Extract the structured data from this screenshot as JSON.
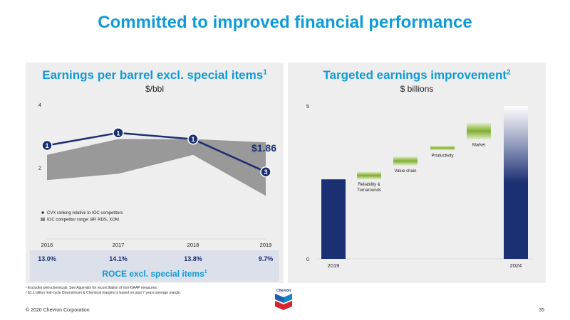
{
  "title": "Committed to improved financial performance",
  "left": {
    "title": "Earnings per barrel excl. special items",
    "title_sup": "1",
    "subtitle": "$/bbl",
    "callout": "$1.86",
    "legend": [
      "CVX ranking relative to IOC competitors",
      "IOC competitor range: BP, RDS, XOM"
    ],
    "roce_values": [
      "13.0%",
      "14.1%",
      "13.8%",
      "9.7%"
    ],
    "roce_label": "ROCE excl. special items",
    "roce_sup": "1"
  },
  "right": {
    "title": "Targeted earnings improvement",
    "title_sup": "2",
    "subtitle": "$ billions"
  },
  "footnotes": [
    "¹ Excludes petrochemicals. See Appendix for reconciliation of non-GAAP measures.",
    "² $1.1 billion mid-cycle Downstream & Chemical margins is based on past 7 years average margin."
  ],
  "footer_left": "© 2020 Chevron Corporation",
  "page_number": "35",
  "logo_text": "Chevron",
  "colors": {
    "accent_blue": "#0f9bd7",
    "navy": "#1b2f73",
    "green": "#86b236",
    "gray_band": "#8a8a8a",
    "roce_bg": "#dbe0ea"
  },
  "chart_data": [
    {
      "type": "line",
      "categories": [
        "2016",
        "2017",
        "2018",
        "2019"
      ],
      "ylim": [
        0,
        4
      ],
      "yticks": [
        "4",
        "2"
      ],
      "series": [
        {
          "name": "CVX ranking relative to IOC competitors",
          "values": [
            2.7,
            3.1,
            2.9,
            1.86
          ],
          "point_labels": [
            "1",
            "1",
            "1",
            "3"
          ]
        }
      ],
      "band": {
        "name": "IOC competitor range: BP, RDS, XOM",
        "low": [
          1.6,
          1.8,
          2.4,
          1.1
        ],
        "high": [
          2.4,
          2.9,
          2.9,
          2.8
        ]
      }
    },
    {
      "type": "waterfall",
      "ylim": [
        0,
        5
      ],
      "yticks": [
        "5",
        "0"
      ],
      "bars": [
        {
          "label": "2019",
          "kind": "total",
          "value": 2.6
        },
        {
          "label": "Reliability & Turnarounds",
          "kind": "step",
          "start": 2.6,
          "end": 2.85
        },
        {
          "label": "Value chain",
          "kind": "step",
          "start": 3.05,
          "end": 3.35
        },
        {
          "label": "Productivity",
          "kind": "step",
          "start": 3.55,
          "end": 3.7
        },
        {
          "label": "Market",
          "kind": "step",
          "start": 3.9,
          "end": 4.45
        },
        {
          "label": "2024",
          "kind": "total",
          "value": 5.0
        }
      ]
    }
  ]
}
